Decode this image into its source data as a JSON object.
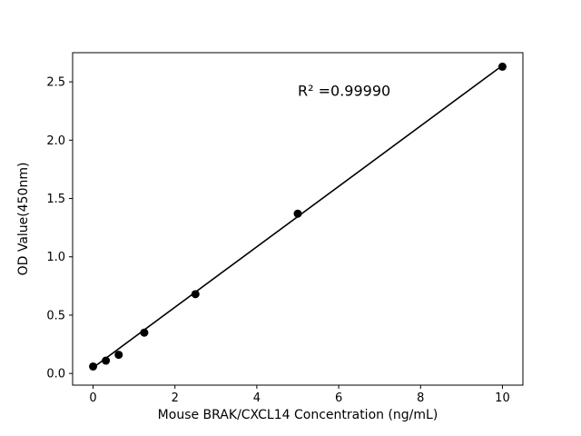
{
  "figure": {
    "background": "#ffffff"
  },
  "chart_data": {
    "type": "scatter",
    "title": "",
    "xlabel": "Mouse BRAK/CXCL14 Concentration (ng/mL)",
    "ylabel": "OD Value(450nm)",
    "annotation": {
      "text": "R² =0.99990",
      "x": 5.0,
      "y": 2.38
    },
    "points": {
      "x": [
        0,
        0.3125,
        0.625,
        1.25,
        2.5,
        5,
        10
      ],
      "y": [
        0.06,
        0.11,
        0.16,
        0.35,
        0.68,
        1.37,
        2.63
      ]
    },
    "fit_line": {
      "x": [
        0,
        10
      ],
      "y": [
        0.05,
        2.64
      ]
    },
    "xlim": [
      -0.5,
      10.5
    ],
    "ylim": [
      -0.1,
      2.75
    ],
    "xticks": [
      0,
      2,
      4,
      6,
      8,
      10
    ],
    "xtick_labels": [
      "0",
      "2",
      "4",
      "6",
      "8",
      "10"
    ],
    "yticks": [
      0.0,
      0.5,
      1.0,
      1.5,
      2.0,
      2.5
    ],
    "ytick_labels": [
      "0.0",
      "0.5",
      "1.0",
      "1.5",
      "2.0",
      "2.5"
    ],
    "grid": false,
    "legend": false,
    "marker_color": "#000000",
    "line_color": "#000000",
    "text_color": "#000000",
    "marker_size": 4.5
  }
}
